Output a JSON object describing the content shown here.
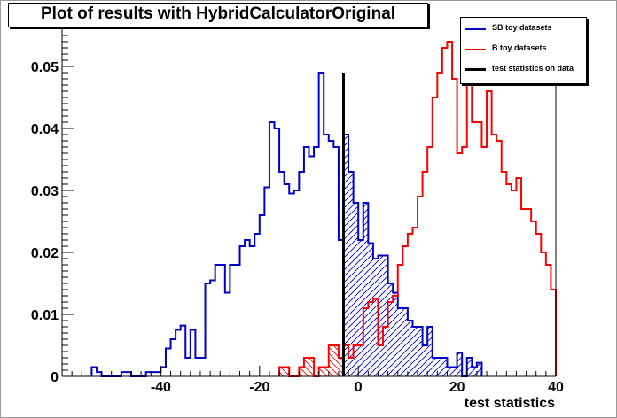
{
  "chart_data": {
    "type": "histogram",
    "title": "Plot of results with HybridCalculatorOriginal",
    "xlabel": "test statistics",
    "ylabel": "",
    "xlim": [
      -60,
      40
    ],
    "ylim": [
      0,
      0.056
    ],
    "x_ticks": [
      -40,
      -20,
      0,
      20,
      40
    ],
    "y_ticks": [
      0,
      0.01,
      0.02,
      0.03,
      0.04,
      0.05
    ],
    "x_tick_labels": [
      "-40",
      "-20",
      "0",
      "20",
      "40"
    ],
    "y_tick_labels": [
      "0",
      "0.01",
      "0.02",
      "0.03",
      "0.04",
      "0.05"
    ],
    "bin_start": -60,
    "bin_width": 1,
    "grid": false,
    "legend_position": "top-right",
    "data_line_x": -3,
    "data_line_y": 0.049,
    "series": [
      {
        "name": "SB toy datasets",
        "color": "#0000cc",
        "hatched_region": "x >= data",
        "values": [
          0,
          0,
          0,
          0,
          0,
          0,
          0.0015,
          0.0007,
          0,
          0,
          0,
          0,
          0.0007,
          0.0007,
          0,
          0,
          0,
          0.0007,
          0.0007,
          0.0007,
          0.0015,
          0.0045,
          0.006,
          0.0075,
          0.0082,
          0.003,
          0.0075,
          0.003,
          0.003,
          0.015,
          0.0155,
          0.018,
          0.018,
          0.0135,
          0.018,
          0.018,
          0.021,
          0.022,
          0.021,
          0.023,
          0.026,
          0.0305,
          0.041,
          0.04,
          0.033,
          0.031,
          0.0295,
          0.03,
          0.033,
          0.037,
          0.0355,
          0.037,
          0.049,
          0.039,
          0.038,
          0.037,
          0.022,
          0.039,
          0.033,
          0.028,
          0.022,
          0.028,
          0.0215,
          0.019,
          0.0195,
          0.0195,
          0.015,
          0.0135,
          0.011,
          0.011,
          0.009,
          0.008,
          0.008,
          0.005,
          0.008,
          0.003,
          0.003,
          0.003,
          0.0015,
          0.0015,
          0.0038,
          0,
          0.003,
          0.0015,
          0.0022,
          0,
          0,
          0,
          0,
          0,
          0,
          0,
          0,
          0,
          0,
          0,
          0,
          0,
          0,
          0
        ]
      },
      {
        "name": "B toy datasets",
        "color": "#ff0000",
        "hatched_region": "x <= data",
        "values": [
          0,
          0,
          0,
          0,
          0,
          0,
          0,
          0,
          0,
          0,
          0,
          0,
          0,
          0,
          0,
          0,
          0,
          0,
          0,
          0,
          0,
          0,
          0,
          0,
          0,
          0,
          0,
          0,
          0,
          0,
          0,
          0,
          0,
          0,
          0,
          0,
          0,
          0,
          0,
          0,
          0,
          0,
          0,
          0,
          0.0015,
          0.0015,
          0,
          0,
          0.0015,
          0.003,
          0.003,
          0,
          0.0015,
          0.0015,
          0.005,
          0.005,
          0.003,
          0.005,
          0.003,
          0.005,
          0.005,
          0.011,
          0.012,
          0.0125,
          0.005,
          0.008,
          0.012,
          0.013,
          0.018,
          0.021,
          0.023,
          0.024,
          0.029,
          0.033,
          0.037,
          0.045,
          0.049,
          0.053,
          0.054,
          0.048,
          0.036,
          0.037,
          0.049,
          0.041,
          0.041,
          0.037,
          0.046,
          0.039,
          0.038,
          0.033,
          0.031,
          0.03,
          0.032,
          0.027,
          0.027,
          0.025,
          0.023,
          0.02,
          0.018,
          0.014
        ]
      }
    ],
    "data_line": {
      "name": "test statistics on data",
      "color": "#000000"
    }
  }
}
